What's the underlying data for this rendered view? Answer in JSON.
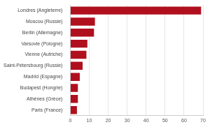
{
  "chart_data": {
    "type": "bar",
    "orientation": "horizontal",
    "categories": [
      "Londres (Angleterre)",
      "Moscou (Russie)",
      "Berlin (Allemagne)",
      "Varsovie (Pologne)",
      "Vienne (Autriche)",
      "Saint-Pétersbourg (Russie)",
      "Madrid (Espagne)",
      "Budapest (Hongrie)",
      "Athènes (Grèce)",
      "Paris (France)"
    ],
    "values": [
      69,
      13,
      12.5,
      9,
      8.5,
      6.5,
      5,
      4,
      4,
      3.5
    ],
    "color": "#b0101e",
    "xlim": [
      0,
      70
    ],
    "xticks": [
      0,
      10,
      20,
      30,
      40,
      50,
      60,
      70
    ],
    "grid": true
  }
}
